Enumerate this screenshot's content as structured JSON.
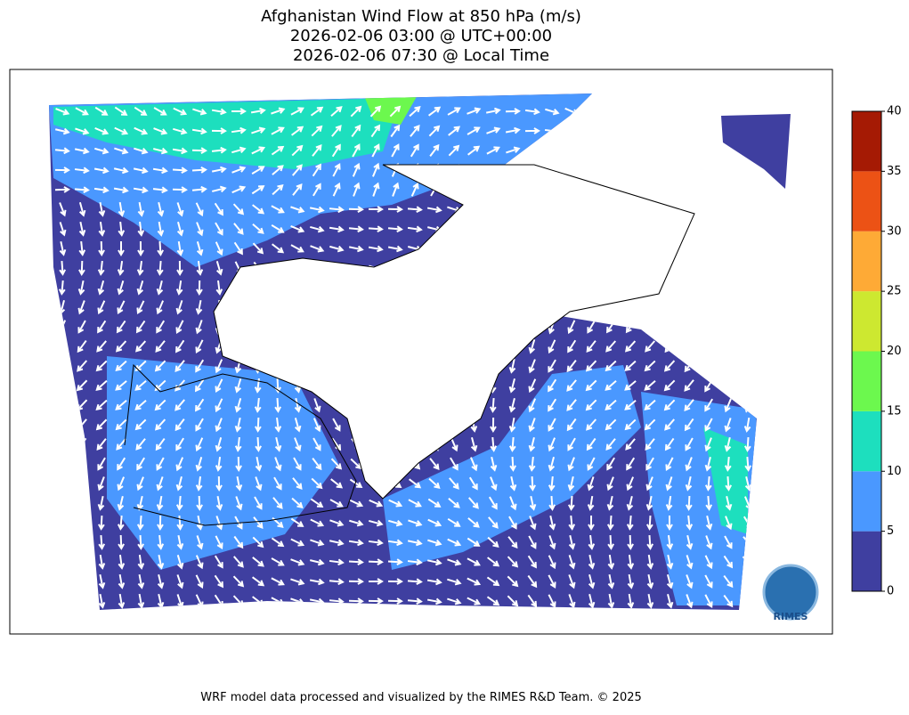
{
  "map": {
    "title_lines": [
      "Afghanistan Wind Flow at 850 hPa (m/s)",
      "2026-02-06 03:00 @ UTC+00:00",
      "2026-02-06 07:30 @ Local Time"
    ],
    "colorbar": {
      "lim": [
        0,
        40
      ],
      "ticks": [
        0,
        5,
        10,
        15,
        20,
        25,
        30,
        35,
        40
      ],
      "colors": [
        "#3f3fa0",
        "#4a98ff",
        "#1ddfbe",
        "#6cf84e",
        "#cde830",
        "#feaa36",
        "#ec5215",
        "#a51a04"
      ]
    },
    "logo": "RIMES",
    "footer": "WRF model data processed and visualized by the RIMES R&D Team. © 2025"
  }
}
